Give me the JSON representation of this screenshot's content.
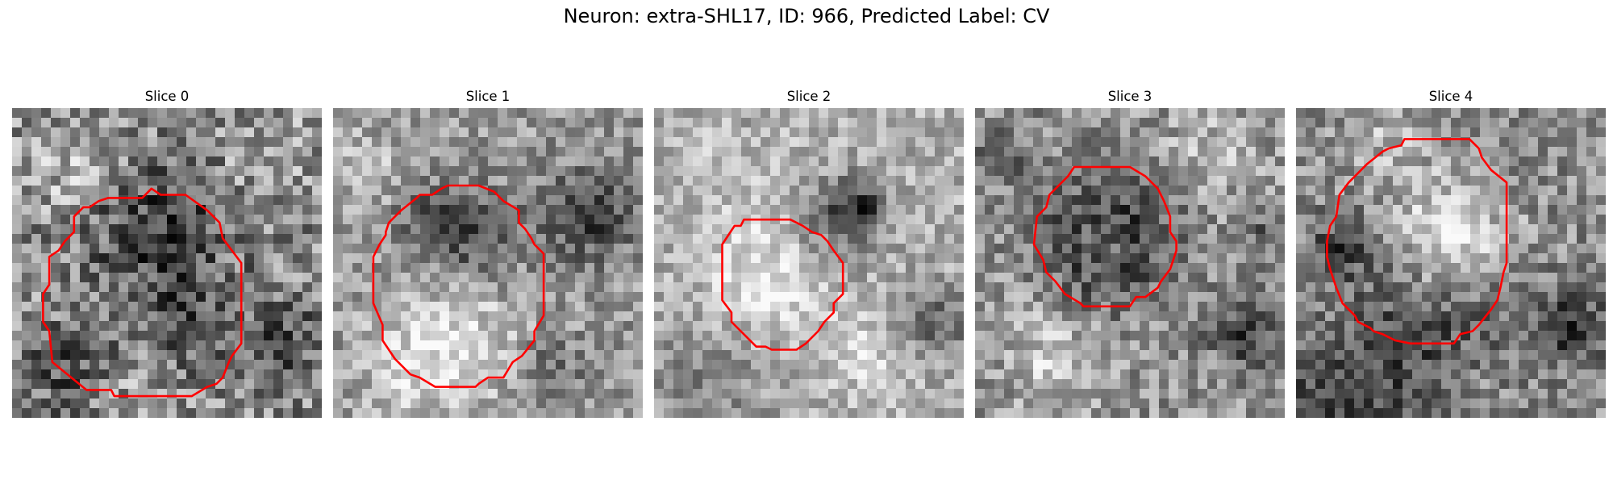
{
  "figure": {
    "title": "Neuron: extra-SHL17, ID: 966, Predicted Label: CV"
  },
  "colors": {
    "contour": "#ff0000"
  },
  "panels": [
    {
      "title": "Slice 0",
      "seed": 11,
      "mean": 0.55,
      "spread": 0.28,
      "dark_blobs": [
        [
          0.48,
          0.42,
          0.22,
          0.35
        ],
        [
          0.2,
          0.85,
          0.15,
          0.25
        ],
        [
          0.85,
          0.75,
          0.15,
          0.25
        ],
        [
          0.55,
          0.72,
          0.12,
          0.2
        ]
      ],
      "light_blobs": [
        [
          0.18,
          0.2,
          0.15,
          0.15
        ],
        [
          0.82,
          0.15,
          0.12,
          0.15
        ],
        [
          0.35,
          0.9,
          0.12,
          0.12
        ]
      ],
      "contour": [
        [
          0.45,
          0.26
        ],
        [
          0.48,
          0.28
        ],
        [
          0.56,
          0.28
        ],
        [
          0.63,
          0.33
        ],
        [
          0.67,
          0.37
        ],
        [
          0.68,
          0.42
        ],
        [
          0.74,
          0.5
        ],
        [
          0.74,
          0.76
        ],
        [
          0.71,
          0.8
        ],
        [
          0.7,
          0.82
        ],
        [
          0.68,
          0.87
        ],
        [
          0.66,
          0.89
        ],
        [
          0.63,
          0.9
        ],
        [
          0.58,
          0.93
        ],
        [
          0.58,
          0.93
        ],
        [
          0.33,
          0.93
        ],
        [
          0.32,
          0.91
        ],
        [
          0.24,
          0.91
        ],
        [
          0.13,
          0.82
        ],
        [
          0.12,
          0.72
        ],
        [
          0.1,
          0.69
        ],
        [
          0.1,
          0.6
        ],
        [
          0.12,
          0.57
        ],
        [
          0.12,
          0.48
        ],
        [
          0.15,
          0.46
        ],
        [
          0.17,
          0.43
        ],
        [
          0.2,
          0.4
        ],
        [
          0.2,
          0.35
        ],
        [
          0.23,
          0.32
        ],
        [
          0.25,
          0.32
        ],
        [
          0.28,
          0.3
        ],
        [
          0.31,
          0.29
        ],
        [
          0.42,
          0.29
        ]
      ]
    },
    {
      "title": "Slice 1",
      "seed": 23,
      "mean": 0.6,
      "spread": 0.2,
      "dark_blobs": [
        [
          0.45,
          0.42,
          0.15,
          0.3
        ],
        [
          0.82,
          0.35,
          0.15,
          0.35
        ],
        [
          0.3,
          0.35,
          0.1,
          0.2
        ],
        [
          0.7,
          0.85,
          0.12,
          0.18
        ]
      ],
      "light_blobs": [
        [
          0.4,
          0.75,
          0.22,
          0.25
        ],
        [
          0.1,
          0.2,
          0.12,
          0.15
        ],
        [
          0.25,
          0.85,
          0.15,
          0.15
        ]
      ],
      "contour": [
        [
          0.32,
          0.28
        ],
        [
          0.28,
          0.28
        ],
        [
          0.27,
          0.29
        ],
        [
          0.22,
          0.33
        ],
        [
          0.18,
          0.37
        ],
        [
          0.17,
          0.4
        ],
        [
          0.17,
          0.41
        ],
        [
          0.15,
          0.44
        ],
        [
          0.13,
          0.48
        ],
        [
          0.13,
          0.63
        ],
        [
          0.16,
          0.7
        ],
        [
          0.16,
          0.75
        ],
        [
          0.2,
          0.81
        ],
        [
          0.25,
          0.86
        ],
        [
          0.28,
          0.87
        ],
        [
          0.33,
          0.9
        ],
        [
          0.46,
          0.9
        ],
        [
          0.47,
          0.89
        ],
        [
          0.5,
          0.87
        ],
        [
          0.55,
          0.87
        ],
        [
          0.58,
          0.82
        ],
        [
          0.61,
          0.8
        ],
        [
          0.65,
          0.75
        ],
        [
          0.65,
          0.72
        ],
        [
          0.68,
          0.67
        ],
        [
          0.68,
          0.47
        ],
        [
          0.65,
          0.44
        ],
        [
          0.64,
          0.42
        ],
        [
          0.62,
          0.39
        ],
        [
          0.6,
          0.37
        ],
        [
          0.6,
          0.33
        ],
        [
          0.55,
          0.3
        ],
        [
          0.52,
          0.27
        ],
        [
          0.47,
          0.25
        ],
        [
          0.37,
          0.25
        ],
        [
          0.35,
          0.26
        ]
      ]
    },
    {
      "title": "Slice 2",
      "seed": 37,
      "mean": 0.68,
      "spread": 0.18,
      "dark_blobs": [
        [
          0.58,
          0.35,
          0.13,
          0.28
        ],
        [
          0.67,
          0.32,
          0.08,
          0.38
        ],
        [
          0.9,
          0.7,
          0.12,
          0.3
        ],
        [
          0.15,
          0.88,
          0.2,
          0.18
        ],
        [
          0.3,
          0.1,
          0.1,
          0.12
        ]
      ],
      "light_blobs": [
        [
          0.35,
          0.55,
          0.18,
          0.25
        ],
        [
          0.3,
          0.15,
          0.15,
          0.15
        ],
        [
          0.7,
          0.78,
          0.15,
          0.15
        ]
      ],
      "contour": [
        [
          0.28,
          0.38
        ],
        [
          0.26,
          0.38
        ],
        [
          0.22,
          0.44
        ],
        [
          0.22,
          0.62
        ],
        [
          0.25,
          0.66
        ],
        [
          0.25,
          0.69
        ],
        [
          0.3,
          0.74
        ],
        [
          0.33,
          0.77
        ],
        [
          0.36,
          0.77
        ],
        [
          0.38,
          0.78
        ],
        [
          0.46,
          0.78
        ],
        [
          0.49,
          0.76
        ],
        [
          0.53,
          0.72
        ],
        [
          0.55,
          0.69
        ],
        [
          0.58,
          0.66
        ],
        [
          0.58,
          0.63
        ],
        [
          0.61,
          0.6
        ],
        [
          0.61,
          0.5
        ],
        [
          0.58,
          0.46
        ],
        [
          0.56,
          0.43
        ],
        [
          0.54,
          0.41
        ],
        [
          0.51,
          0.4
        ],
        [
          0.48,
          0.38
        ],
        [
          0.44,
          0.36
        ],
        [
          0.29,
          0.36
        ]
      ]
    },
    {
      "title": "Slice 3",
      "seed": 41,
      "mean": 0.58,
      "spread": 0.22,
      "dark_blobs": [
        [
          0.44,
          0.42,
          0.2,
          0.45
        ],
        [
          0.88,
          0.72,
          0.12,
          0.35
        ],
        [
          0.95,
          0.4,
          0.08,
          0.2
        ],
        [
          0.1,
          0.15,
          0.12,
          0.15
        ]
      ],
      "light_blobs": [
        [
          0.43,
          0.42,
          0.08,
          0.3
        ],
        [
          0.25,
          0.8,
          0.15,
          0.2
        ],
        [
          0.75,
          0.15,
          0.15,
          0.15
        ]
      ],
      "contour": [
        [
          0.35,
          0.19
        ],
        [
          0.32,
          0.19
        ],
        [
          0.3,
          0.22
        ],
        [
          0.27,
          0.25
        ],
        [
          0.24,
          0.28
        ],
        [
          0.23,
          0.32
        ],
        [
          0.2,
          0.35
        ],
        [
          0.19,
          0.44
        ],
        [
          0.22,
          0.49
        ],
        [
          0.23,
          0.53
        ],
        [
          0.26,
          0.56
        ],
        [
          0.29,
          0.6
        ],
        [
          0.34,
          0.63
        ],
        [
          0.35,
          0.64
        ],
        [
          0.38,
          0.64
        ],
        [
          0.5,
          0.64
        ],
        [
          0.52,
          0.61
        ],
        [
          0.55,
          0.61
        ],
        [
          0.59,
          0.58
        ],
        [
          0.6,
          0.56
        ],
        [
          0.63,
          0.52
        ],
        [
          0.64,
          0.49
        ],
        [
          0.65,
          0.46
        ],
        [
          0.65,
          0.43
        ],
        [
          0.63,
          0.4
        ],
        [
          0.63,
          0.35
        ],
        [
          0.61,
          0.3
        ],
        [
          0.6,
          0.28
        ],
        [
          0.59,
          0.26
        ],
        [
          0.55,
          0.22
        ],
        [
          0.5,
          0.19
        ]
      ]
    },
    {
      "title": "Slice 4",
      "seed": 53,
      "mean": 0.55,
      "spread": 0.22,
      "dark_blobs": [
        [
          0.15,
          0.45,
          0.1,
          0.3
        ],
        [
          0.88,
          0.7,
          0.12,
          0.35
        ],
        [
          0.45,
          0.68,
          0.25,
          0.2
        ],
        [
          0.4,
          0.95,
          0.3,
          0.15
        ],
        [
          0.1,
          0.95,
          0.2,
          0.2
        ]
      ],
      "light_blobs": [
        [
          0.5,
          0.42,
          0.18,
          0.42
        ],
        [
          0.55,
          0.9,
          0.15,
          0.15
        ],
        [
          0.3,
          0.1,
          0.15,
          0.15
        ]
      ],
      "contour": [
        [
          0.3,
          0.13
        ],
        [
          0.28,
          0.14
        ],
        [
          0.23,
          0.18
        ],
        [
          0.17,
          0.24
        ],
        [
          0.14,
          0.28
        ],
        [
          0.13,
          0.35
        ],
        [
          0.11,
          0.38
        ],
        [
          0.1,
          0.43
        ],
        [
          0.1,
          0.48
        ],
        [
          0.11,
          0.52
        ],
        [
          0.13,
          0.58
        ],
        [
          0.15,
          0.63
        ],
        [
          0.19,
          0.67
        ],
        [
          0.2,
          0.69
        ],
        [
          0.24,
          0.71
        ],
        [
          0.25,
          0.72
        ],
        [
          0.28,
          0.73
        ],
        [
          0.32,
          0.75
        ],
        [
          0.37,
          0.76
        ],
        [
          0.51,
          0.76
        ],
        [
          0.53,
          0.73
        ],
        [
          0.57,
          0.72
        ],
        [
          0.59,
          0.7
        ],
        [
          0.63,
          0.65
        ],
        [
          0.65,
          0.62
        ],
        [
          0.66,
          0.58
        ],
        [
          0.67,
          0.53
        ],
        [
          0.68,
          0.5
        ],
        [
          0.68,
          0.24
        ],
        [
          0.63,
          0.2
        ],
        [
          0.6,
          0.16
        ],
        [
          0.59,
          0.13
        ],
        [
          0.56,
          0.1
        ],
        [
          0.35,
          0.1
        ],
        [
          0.34,
          0.12
        ]
      ]
    }
  ]
}
